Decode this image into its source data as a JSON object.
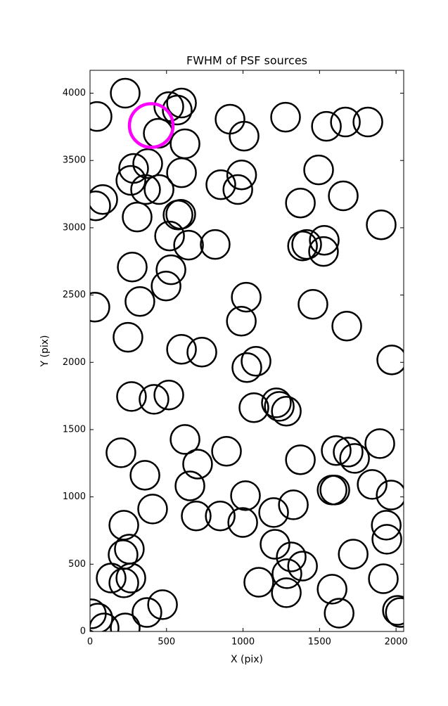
{
  "chart_data": {
    "type": "scatter",
    "title": "FWHM of PSF sources",
    "x_label": "X (pix)",
    "y_label": "Y (pix)",
    "xlim": [
      0,
      2050
    ],
    "ylim": [
      0,
      4170
    ],
    "xticks": [
      0,
      500,
      1000,
      1500,
      2000
    ],
    "yticks": [
      0,
      500,
      1000,
      1500,
      2000,
      2500,
      3000,
      3500,
      4000
    ],
    "marker": "hollow-circle",
    "series": [
      {
        "color": "#000000",
        "x": [
          230,
          46,
          515,
          570,
          598,
          446,
          621,
          915,
          1007,
          1278,
          1545,
          1669,
          1816,
          285,
          377,
          267,
          363,
          451,
          598,
          855,
          991,
          966,
          1494,
          1655,
          37,
          83,
          308,
          575,
          593,
          1375,
          1903,
          520,
          644,
          818,
          1389,
          1416,
          1531,
          1526,
          276,
          529,
          497,
          326,
          1021,
          1457,
          32,
          989,
          1678,
          248,
          598,
          731,
          1085,
          1025,
          1972,
          271,
          418,
          515,
          1071,
          1218,
          1237,
          1283,
          202,
          621,
          892,
          1609,
          1687,
          1729,
          1894,
          1375,
          359,
          703,
          653,
          1582,
          1600,
          1844,
          1968,
          409,
          1016,
          1329,
          221,
          694,
          851,
          998,
          1200,
          1936,
          1940,
          257,
          216,
          1209,
          1315,
          1389,
          1720,
          138,
          221,
          267,
          1103,
          1287,
          1283,
          1917,
          1582,
          9,
          51,
          92,
          230,
          372,
          474,
          1628,
          2009,
          2028
        ],
        "values": [
          4000,
          3827,
          3900,
          3875,
          3927,
          3702,
          3624,
          3807,
          3681,
          3822,
          3754,
          3786,
          3786,
          3441,
          3477,
          3352,
          3284,
          3284,
          3409,
          3320,
          3393,
          3284,
          3430,
          3237,
          3163,
          3210,
          3080,
          3095,
          3100,
          3184,
          3022,
          2939,
          2871,
          2876,
          2865,
          2876,
          2907,
          2824,
          2708,
          2688,
          2567,
          2452,
          2484,
          2431,
          2410,
          2306,
          2269,
          2186,
          2097,
          2076,
          2008,
          1961,
          2018,
          1746,
          1725,
          1757,
          1663,
          1699,
          1673,
          1637,
          1328,
          1427,
          1339,
          1344,
          1333,
          1286,
          1396,
          1276,
          1161,
          1244,
          1082,
          1051,
          1051,
          1093,
          1014,
          910,
          1009,
          941,
          790,
          858,
          858,
          810,
          884,
          790,
          685,
          612,
          570,
          648,
          554,
          486,
          575,
          397,
          361,
          397,
          366,
          429,
          288,
          392,
          314,
          131,
          99,
          26,
          26,
          141,
          199,
          136,
          157,
          141
        ]
      },
      {
        "color": "#ff00ff",
        "x": [
          400
        ],
        "values": [
          3760
        ]
      }
    ]
  }
}
